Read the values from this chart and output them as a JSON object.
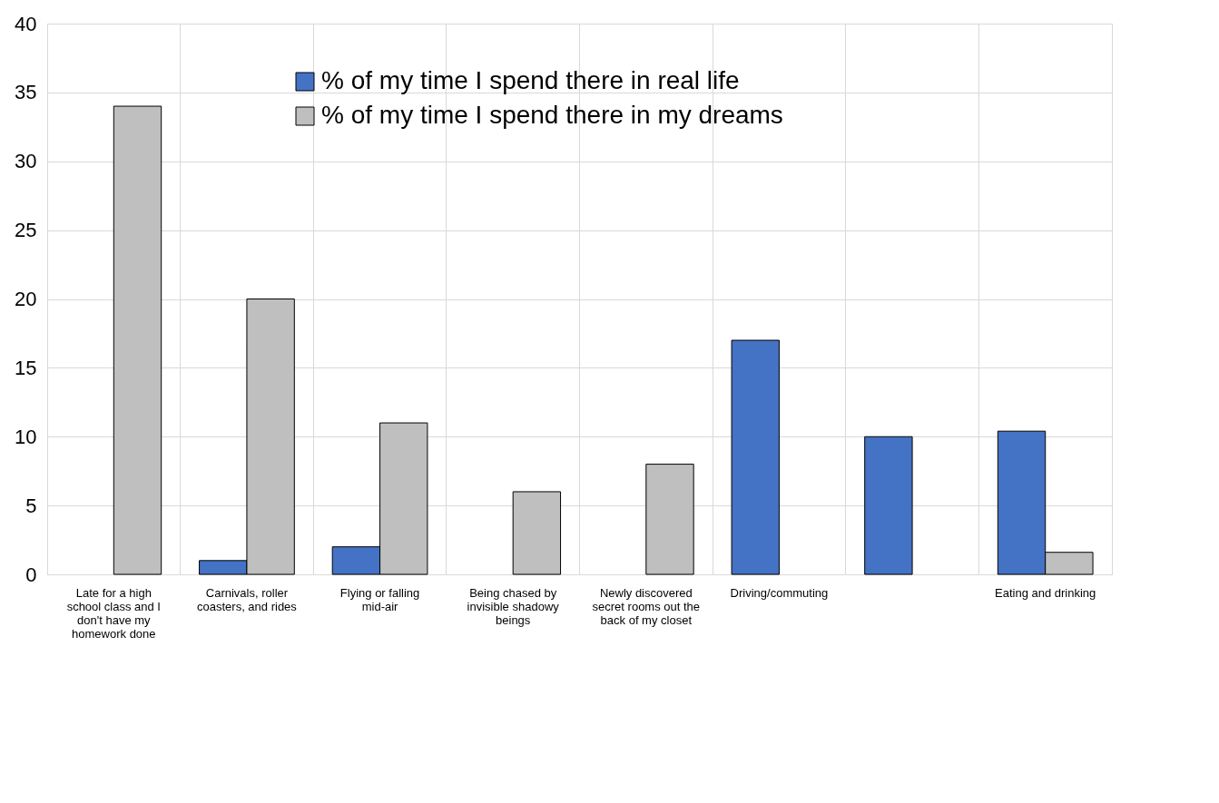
{
  "chart_data": {
    "type": "bar",
    "categories": [
      "Late for a high school class and I don't have my homework done",
      "Carnivals, roller coasters, and rides",
      "Flying or falling mid-air",
      "Being chased by invisible shadowy beings",
      "Newly discovered secret rooms out the back of my closet",
      "Driving/commuting",
      null,
      "Eating and drinking"
    ],
    "series": [
      {
        "name": "% of my time I spend there in real life",
        "color": "#4472c4",
        "values": [
          0,
          1,
          2,
          0,
          0,
          17,
          10,
          10.4
        ]
      },
      {
        "name": "% of my time I spend there in my dreams",
        "color": "#bfbfbf",
        "values": [
          34,
          20,
          11,
          6,
          8,
          0,
          0,
          1.6
        ]
      }
    ],
    "ylim": [
      0,
      40
    ],
    "yticks": [
      0,
      5,
      10,
      15,
      20,
      25,
      30,
      35,
      40
    ],
    "grid": true,
    "legend": "top"
  }
}
